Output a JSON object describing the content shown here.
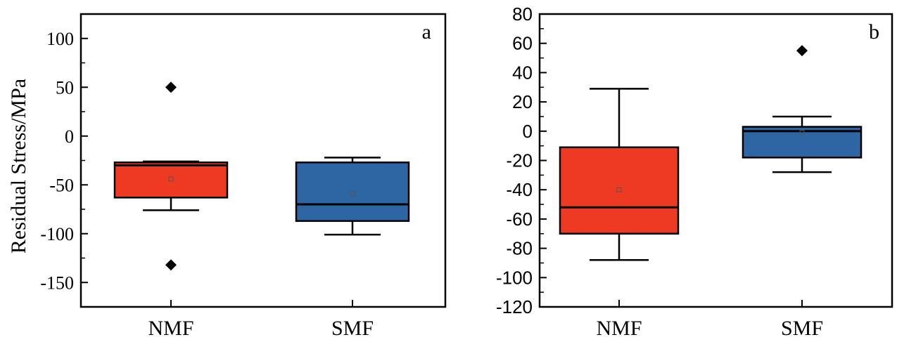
{
  "chart_data": [
    {
      "type": "box",
      "panel_label": "a",
      "ylabel": "Residual Stress/MPa",
      "ylim": [
        -175,
        125
      ],
      "yticks": [
        100,
        50,
        0,
        -50,
        -100,
        -150
      ],
      "ytick_labels": [
        "100",
        "50",
        "0",
        "-50",
        "-100",
        "-150"
      ],
      "categories": [
        "NMF",
        "SMF"
      ],
      "boxes": [
        {
          "category": "NMF",
          "color": "#ee3a23",
          "whisker_low": -76,
          "q1": -63,
          "median": -30,
          "q3": -27,
          "whisker_high": -26,
          "mean": -44,
          "outliers": [
            50,
            -132
          ]
        },
        {
          "category": "SMF",
          "color": "#2e66a3",
          "whisker_low": -101,
          "q1": -87,
          "median": -70,
          "q3": -27,
          "whisker_high": -22,
          "mean": -59,
          "outliers": []
        }
      ]
    },
    {
      "type": "box",
      "panel_label": "b",
      "ylabel": "",
      "ylim": [
        -120,
        80
      ],
      "yticks": [
        80,
        60,
        40,
        20,
        0,
        -20,
        -40,
        -60,
        -80,
        -100,
        -120
      ],
      "ytick_labels": [
        "80",
        "60",
        "40",
        "20",
        "0",
        "-20",
        "-40",
        "-60",
        "-80",
        "-100",
        "-120"
      ],
      "categories": [
        "NMF",
        "SMF"
      ],
      "boxes": [
        {
          "category": "NMF",
          "color": "#ee3a23",
          "whisker_low": -88,
          "q1": -70,
          "median": -52,
          "q3": -11,
          "whisker_high": 29,
          "mean": -40,
          "outliers": []
        },
        {
          "category": "SMF",
          "color": "#2e66a3",
          "whisker_low": -28,
          "q1": -18,
          "median": 0,
          "q3": 3,
          "whisker_high": 10,
          "mean": -1,
          "outliers": [
            55
          ]
        }
      ]
    }
  ]
}
